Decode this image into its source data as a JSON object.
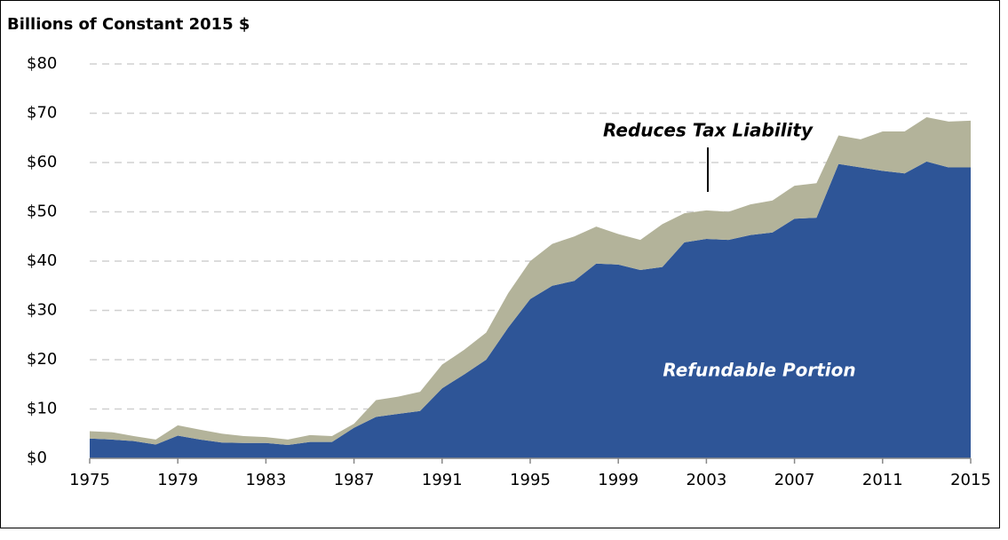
{
  "chart_data": {
    "type": "stacked_area",
    "title": "Billions of Constant 2015 $",
    "x": [
      1975,
      1976,
      1977,
      1978,
      1979,
      1980,
      1981,
      1982,
      1983,
      1984,
      1985,
      1986,
      1987,
      1988,
      1989,
      1990,
      1991,
      1992,
      1993,
      1994,
      1995,
      1996,
      1997,
      1998,
      1999,
      2000,
      2001,
      2002,
      2003,
      2004,
      2005,
      2006,
      2007,
      2008,
      2009,
      2010,
      2011,
      2012,
      2013,
      2014,
      2015
    ],
    "series": [
      {
        "name": "Refundable Portion",
        "color": "#2e5597",
        "values": [
          4,
          3.8,
          3.5,
          2.8,
          4.6,
          3.8,
          3.2,
          3.1,
          3.1,
          2.7,
          3.3,
          3.3,
          6.2,
          8.4,
          9,
          9.6,
          14.2,
          17,
          20,
          26.5,
          32.3,
          35,
          36,
          39.5,
          39.3,
          38.2,
          38.8,
          43.8,
          44.5,
          44.3,
          45.3,
          45.8,
          48.6,
          48.8,
          59.7,
          59,
          58.3,
          57.8,
          60.2,
          59,
          59
        ]
      },
      {
        "name": "Reduces Tax Liability",
        "color": "#b3b39a",
        "values": [
          1.5,
          1.5,
          1,
          1,
          2.1,
          2,
          1.8,
          1.4,
          1.2,
          1.1,
          1.4,
          1.2,
          0.8,
          3.4,
          3.5,
          3.9,
          4.8,
          5,
          5.5,
          7,
          7.7,
          8.5,
          9,
          7.5,
          6.2,
          6.1,
          8.7,
          5.9,
          5.8,
          5.7,
          6.2,
          6.5,
          6.7,
          7,
          5.8,
          5.7,
          8,
          8.5,
          9,
          9.3,
          9.5
        ]
      }
    ],
    "xlim": [
      1975,
      2015
    ],
    "xticks": [
      1975,
      1979,
      1983,
      1987,
      1991,
      1995,
      1999,
      2003,
      2007,
      2011,
      2015
    ],
    "ylim": [
      0,
      80
    ],
    "yticks": [
      {
        "value": 0,
        "label": "$0"
      },
      {
        "value": 10,
        "label": "$10"
      },
      {
        "value": 20,
        "label": "$20"
      },
      {
        "value": 30,
        "label": "$30"
      },
      {
        "value": 40,
        "label": "$40"
      },
      {
        "value": 50,
        "label": "$50"
      },
      {
        "value": 60,
        "label": "$60"
      },
      {
        "value": 70,
        "label": "$70"
      },
      {
        "value": 80,
        "label": "$80"
      }
    ],
    "grid": true
  }
}
